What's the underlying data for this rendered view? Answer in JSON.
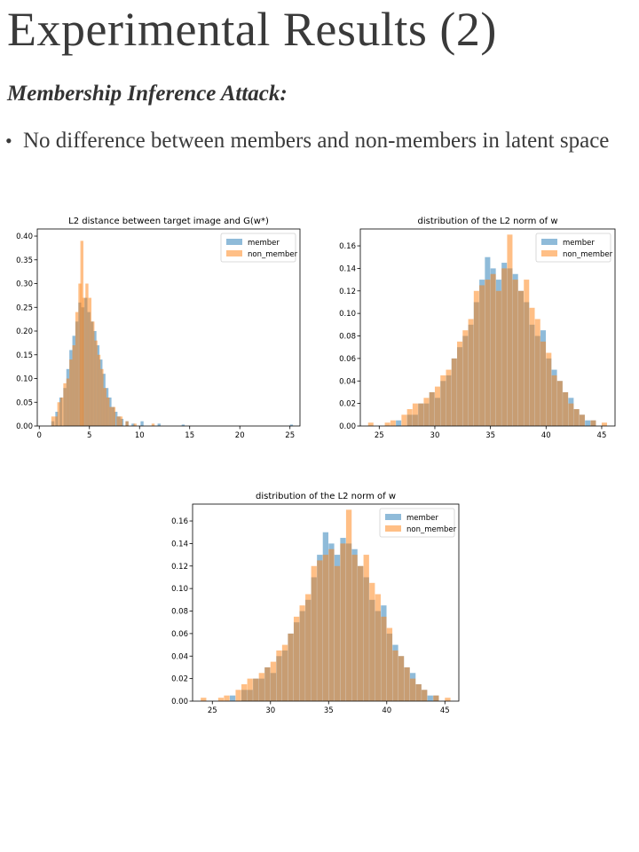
{
  "slide": {
    "title": "Experimental Results (2)",
    "subtitle": "Membership Inference Attack:",
    "bullet": "No difference between members and non-members in latent space"
  },
  "colors": {
    "member": "#1f77b4",
    "non_member": "#ff7f0e",
    "overlap": "#b58a64"
  },
  "chart_data": [
    {
      "type": "histogram",
      "title": "L2 distance between target image and G(w*)",
      "xlim": [
        -0.2,
        26
      ],
      "ylim": [
        0,
        0.415
      ],
      "xticks": [
        0,
        5,
        10,
        15,
        20,
        25
      ],
      "yticks": [
        0.0,
        0.05,
        0.1,
        0.15,
        0.2,
        0.25,
        0.3,
        0.35,
        0.4
      ],
      "ytick_labels": [
        "0.00",
        "0.05",
        "0.10",
        "0.15",
        "0.20",
        "0.25",
        "0.30",
        "0.35",
        "0.40"
      ],
      "legend": "top-right",
      "series": [
        {
          "name": "member",
          "bins": [
            [
              1.2,
              0.01
            ],
            [
              1.6,
              0.03
            ],
            [
              2.0,
              0.06
            ],
            [
              2.4,
              0.08
            ],
            [
              2.7,
              0.12
            ],
            [
              3.0,
              0.16
            ],
            [
              3.3,
              0.19
            ],
            [
              3.6,
              0.22
            ],
            [
              3.9,
              0.26
            ],
            [
              4.2,
              0.25
            ],
            [
              4.5,
              0.27
            ],
            [
              4.8,
              0.24
            ],
            [
              5.1,
              0.22
            ],
            [
              5.4,
              0.2
            ],
            [
              5.7,
              0.17
            ],
            [
              6.0,
              0.14
            ],
            [
              6.3,
              0.11
            ],
            [
              6.6,
              0.08
            ],
            [
              6.9,
              0.06
            ],
            [
              7.2,
              0.04
            ],
            [
              7.5,
              0.03
            ],
            [
              7.8,
              0.02
            ],
            [
              8.1,
              0.015
            ],
            [
              8.6,
              0.01
            ],
            [
              9.2,
              0.005
            ],
            [
              10.1,
              0.01
            ],
            [
              11.8,
              0.005
            ],
            [
              14.2,
              0.003
            ],
            [
              25.0,
              0.003
            ]
          ]
        },
        {
          "name": "non_member",
          "bins": [
            [
              1.2,
              0.02
            ],
            [
              1.5,
              0.02
            ],
            [
              1.8,
              0.05
            ],
            [
              2.1,
              0.06
            ],
            [
              2.4,
              0.09
            ],
            [
              2.7,
              0.1
            ],
            [
              3.0,
              0.14
            ],
            [
              3.3,
              0.17
            ],
            [
              3.6,
              0.24
            ],
            [
              3.9,
              0.3
            ],
            [
              4.1,
              0.39
            ],
            [
              4.3,
              0.27
            ],
            [
              4.6,
              0.3
            ],
            [
              4.9,
              0.27
            ],
            [
              5.2,
              0.22
            ],
            [
              5.5,
              0.18
            ],
            [
              5.8,
              0.15
            ],
            [
              6.1,
              0.12
            ],
            [
              6.4,
              0.08
            ],
            [
              6.7,
              0.06
            ],
            [
              7.0,
              0.04
            ],
            [
              7.3,
              0.04
            ],
            [
              7.7,
              0.02
            ],
            [
              8.0,
              0.02
            ],
            [
              8.6,
              0.01
            ],
            [
              9.4,
              0.005
            ],
            [
              11.2,
              0.005
            ]
          ]
        }
      ]
    },
    {
      "type": "histogram",
      "title": "distribution of the L2 norm of w",
      "xlim": [
        23.3,
        46.2
      ],
      "ylim": [
        0,
        0.175
      ],
      "xticks": [
        25,
        30,
        35,
        40,
        45
      ],
      "yticks": [
        0.0,
        0.02,
        0.04,
        0.06,
        0.08,
        0.1,
        0.12,
        0.14,
        0.16
      ],
      "ytick_labels": [
        "0.00",
        "0.02",
        "0.04",
        "0.06",
        "0.08",
        "0.10",
        "0.12",
        "0.14",
        "0.16"
      ],
      "legend": "top-right",
      "series": [
        {
          "name": "member",
          "bins": [
            [
              26.5,
              0.005
            ],
            [
              27.5,
              0.01
            ],
            [
              28.0,
              0.01
            ],
            [
              28.5,
              0.02
            ],
            [
              29.0,
              0.02
            ],
            [
              29.5,
              0.03
            ],
            [
              30.0,
              0.025
            ],
            [
              30.5,
              0.04
            ],
            [
              31.0,
              0.045
            ],
            [
              31.5,
              0.06
            ],
            [
              32.0,
              0.07
            ],
            [
              32.5,
              0.08
            ],
            [
              33.0,
              0.09
            ],
            [
              33.5,
              0.11
            ],
            [
              34.0,
              0.13
            ],
            [
              34.5,
              0.15
            ],
            [
              35.0,
              0.14
            ],
            [
              35.5,
              0.13
            ],
            [
              36.0,
              0.145
            ],
            [
              36.5,
              0.14
            ],
            [
              37.0,
              0.135
            ],
            [
              37.5,
              0.12
            ],
            [
              38.0,
              0.11
            ],
            [
              38.5,
              0.09
            ],
            [
              39.0,
              0.08
            ],
            [
              39.5,
              0.085
            ],
            [
              40.0,
              0.06
            ],
            [
              40.5,
              0.05
            ],
            [
              41.0,
              0.04
            ],
            [
              41.5,
              0.03
            ],
            [
              42.0,
              0.025
            ],
            [
              42.5,
              0.015
            ],
            [
              43.0,
              0.01
            ],
            [
              43.5,
              0.005
            ],
            [
              44.0,
              0.005
            ]
          ]
        },
        {
          "name": "non_member",
          "bins": [
            [
              24.0,
              0.003
            ],
            [
              25.5,
              0.003
            ],
            [
              26.0,
              0.005
            ],
            [
              27.0,
              0.01
            ],
            [
              27.5,
              0.015
            ],
            [
              28.0,
              0.02
            ],
            [
              28.5,
              0.02
            ],
            [
              29.0,
              0.025
            ],
            [
              29.5,
              0.03
            ],
            [
              30.0,
              0.035
            ],
            [
              30.5,
              0.045
            ],
            [
              31.0,
              0.05
            ],
            [
              31.5,
              0.06
            ],
            [
              32.0,
              0.075
            ],
            [
              32.5,
              0.085
            ],
            [
              33.0,
              0.095
            ],
            [
              33.5,
              0.12
            ],
            [
              34.0,
              0.125
            ],
            [
              34.5,
              0.13
            ],
            [
              35.0,
              0.135
            ],
            [
              35.5,
              0.12
            ],
            [
              36.0,
              0.14
            ],
            [
              36.5,
              0.17
            ],
            [
              37.0,
              0.13
            ],
            [
              37.5,
              0.12
            ],
            [
              38.0,
              0.13
            ],
            [
              38.5,
              0.105
            ],
            [
              39.0,
              0.095
            ],
            [
              39.5,
              0.075
            ],
            [
              40.0,
              0.065
            ],
            [
              40.5,
              0.045
            ],
            [
              41.0,
              0.04
            ],
            [
              41.5,
              0.03
            ],
            [
              42.0,
              0.02
            ],
            [
              42.5,
              0.015
            ],
            [
              43.0,
              0.01
            ],
            [
              44.0,
              0.005
            ],
            [
              45.0,
              0.003
            ]
          ]
        }
      ]
    },
    {
      "type": "histogram",
      "title": "distribution of the L2 norm of w",
      "xlim": [
        23.3,
        46.2
      ],
      "ylim": [
        0,
        0.175
      ],
      "xticks": [
        25,
        30,
        35,
        40,
        45
      ],
      "yticks": [
        0.0,
        0.02,
        0.04,
        0.06,
        0.08,
        0.1,
        0.12,
        0.14,
        0.16
      ],
      "ytick_labels": [
        "0.00",
        "0.02",
        "0.04",
        "0.06",
        "0.08",
        "0.10",
        "0.12",
        "0.14",
        "0.16"
      ],
      "legend": "top-right",
      "series": [
        {
          "name": "member",
          "bins": [
            [
              26.5,
              0.005
            ],
            [
              27.5,
              0.01
            ],
            [
              28.0,
              0.01
            ],
            [
              28.5,
              0.02
            ],
            [
              29.0,
              0.02
            ],
            [
              29.5,
              0.03
            ],
            [
              30.0,
              0.025
            ],
            [
              30.5,
              0.04
            ],
            [
              31.0,
              0.045
            ],
            [
              31.5,
              0.06
            ],
            [
              32.0,
              0.07
            ],
            [
              32.5,
              0.08
            ],
            [
              33.0,
              0.09
            ],
            [
              33.5,
              0.11
            ],
            [
              34.0,
              0.13
            ],
            [
              34.5,
              0.15
            ],
            [
              35.0,
              0.14
            ],
            [
              35.5,
              0.13
            ],
            [
              36.0,
              0.145
            ],
            [
              36.5,
              0.14
            ],
            [
              37.0,
              0.135
            ],
            [
              37.5,
              0.12
            ],
            [
              38.0,
              0.11
            ],
            [
              38.5,
              0.09
            ],
            [
              39.0,
              0.08
            ],
            [
              39.5,
              0.085
            ],
            [
              40.0,
              0.06
            ],
            [
              40.5,
              0.05
            ],
            [
              41.0,
              0.04
            ],
            [
              41.5,
              0.03
            ],
            [
              42.0,
              0.025
            ],
            [
              42.5,
              0.015
            ],
            [
              43.0,
              0.01
            ],
            [
              43.5,
              0.005
            ],
            [
              44.0,
              0.005
            ]
          ]
        },
        {
          "name": "non_member",
          "bins": [
            [
              24.0,
              0.003
            ],
            [
              25.5,
              0.003
            ],
            [
              26.0,
              0.005
            ],
            [
              27.0,
              0.01
            ],
            [
              27.5,
              0.015
            ],
            [
              28.0,
              0.02
            ],
            [
              28.5,
              0.02
            ],
            [
              29.0,
              0.025
            ],
            [
              29.5,
              0.03
            ],
            [
              30.0,
              0.035
            ],
            [
              30.5,
              0.045
            ],
            [
              31.0,
              0.05
            ],
            [
              31.5,
              0.06
            ],
            [
              32.0,
              0.075
            ],
            [
              32.5,
              0.085
            ],
            [
              33.0,
              0.095
            ],
            [
              33.5,
              0.12
            ],
            [
              34.0,
              0.125
            ],
            [
              34.5,
              0.13
            ],
            [
              35.0,
              0.135
            ],
            [
              35.5,
              0.12
            ],
            [
              36.0,
              0.14
            ],
            [
              36.5,
              0.17
            ],
            [
              37.0,
              0.13
            ],
            [
              37.5,
              0.12
            ],
            [
              38.0,
              0.13
            ],
            [
              38.5,
              0.105
            ],
            [
              39.0,
              0.095
            ],
            [
              39.5,
              0.075
            ],
            [
              40.0,
              0.065
            ],
            [
              40.5,
              0.045
            ],
            [
              41.0,
              0.04
            ],
            [
              41.5,
              0.03
            ],
            [
              42.0,
              0.02
            ],
            [
              42.5,
              0.015
            ],
            [
              43.0,
              0.01
            ],
            [
              44.0,
              0.005
            ],
            [
              45.0,
              0.003
            ]
          ]
        }
      ]
    }
  ]
}
